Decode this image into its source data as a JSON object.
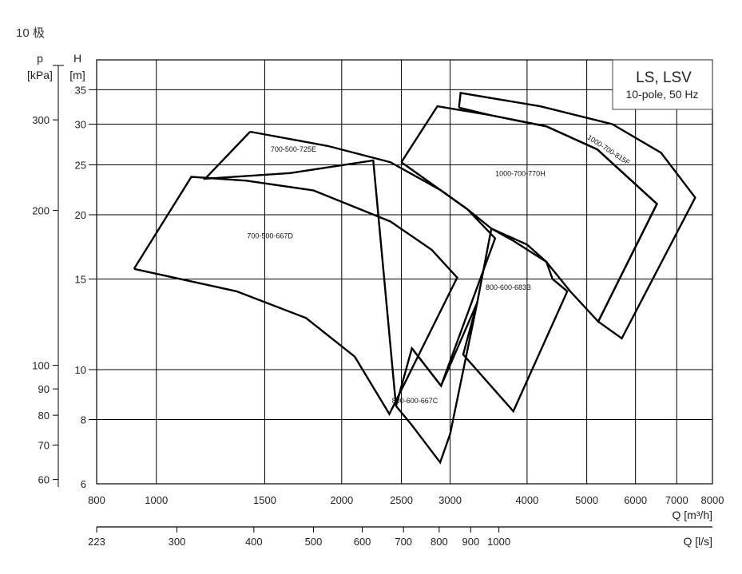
{
  "page": {
    "title": "10 极"
  },
  "legend": {
    "title": "LS, LSV",
    "subtitle": "10-pole, 50 Hz"
  },
  "chart_data": {
    "type": "line",
    "scale": "log-log",
    "grid": true,
    "legend_position": "top-right",
    "x_axis": {
      "label": "Q [m³/h]",
      "range": [
        800,
        8000
      ],
      "ticks": [
        800,
        1000,
        1500,
        2000,
        2500,
        3000,
        4000,
        5000,
        6000,
        7000,
        8000
      ]
    },
    "x2_axis": {
      "label": "Q [l/s]",
      "ticks": [
        223,
        300,
        400,
        500,
        600,
        700,
        800,
        900,
        1000
      ]
    },
    "y_axis": {
      "label_symbol": "H",
      "label_unit": "[m]",
      "range": [
        6,
        40
      ],
      "ticks": [
        6,
        8,
        10,
        15,
        20,
        25,
        30,
        35
      ]
    },
    "y2_axis": {
      "label_symbol": "p",
      "label_unit": "[kPa]",
      "ticks": [
        60,
        70,
        80,
        90,
        100,
        200,
        300
      ]
    },
    "series": [
      {
        "name": "700-500-725E",
        "outline": [
          [
            1420,
            29
          ],
          [
            1900,
            27.2
          ],
          [
            2400,
            25.3
          ],
          [
            2900,
            22.3
          ],
          [
            3200,
            20.5
          ],
          [
            3550,
            18
          ],
          [
            2900,
            9.3
          ],
          [
            2600,
            11
          ],
          [
            2450,
            8.5
          ],
          [
            2250,
            25.5
          ],
          [
            1650,
            24.1
          ],
          [
            1200,
            23.5
          ],
          [
            1420,
            29
          ]
        ],
        "label_at": [
          1670,
          26.5
        ]
      },
      {
        "name": "700-500-667D",
        "outline": [
          [
            920,
            15.7
          ],
          [
            1140,
            23.7
          ],
          [
            1400,
            23.3
          ],
          [
            1800,
            22.3
          ],
          [
            2400,
            19.4
          ],
          [
            2800,
            17.1
          ],
          [
            3080,
            15.1
          ],
          [
            2390,
            8.2
          ],
          [
            2100,
            10.6
          ],
          [
            1750,
            12.6
          ],
          [
            1350,
            14.2
          ],
          [
            920,
            15.7
          ]
        ],
        "label_at": [
          1530,
          18
        ]
      },
      {
        "name": "800-600-667C",
        "outline": [
          [
            2450,
            8.5
          ],
          [
            2600,
            7.8
          ],
          [
            2890,
            6.6
          ],
          [
            3000,
            7.5
          ],
          [
            3320,
            13.5
          ],
          [
            2900,
            9.3
          ],
          [
            2600,
            11
          ]
        ],
        "label_at": [
          2630,
          8.6
        ]
      },
      {
        "name": "800-600-683B",
        "outline": [
          [
            3500,
            18.8
          ],
          [
            4000,
            17.5
          ],
          [
            4300,
            16.2
          ],
          [
            4400,
            15
          ],
          [
            4650,
            14.2
          ],
          [
            3800,
            8.3
          ],
          [
            3150,
            10.7
          ],
          [
            3320,
            13.5
          ],
          [
            3500,
            18.8
          ]
        ],
        "label_at": [
          3730,
          14.3
        ]
      },
      {
        "name": "1000-700-770H",
        "outline": [
          [
            2500,
            25.3
          ],
          [
            2860,
            32.5
          ],
          [
            3500,
            31.2
          ],
          [
            4300,
            29.7
          ],
          [
            5200,
            26.8
          ],
          [
            6500,
            21
          ],
          [
            5220,
            12.4
          ],
          [
            4700,
            14.2
          ],
          [
            4300,
            16.2
          ],
          [
            3800,
            17.8
          ],
          [
            3500,
            18.8
          ],
          [
            3200,
            20.5
          ],
          [
            2500,
            25.3
          ]
        ],
        "label_at": [
          3900,
          23.8
        ]
      },
      {
        "name": "1000-700-815F",
        "outline": [
          [
            3100,
            32.3
          ],
          [
            3120,
            34.5
          ],
          [
            4200,
            32.5
          ],
          [
            5500,
            30
          ],
          [
            6600,
            26.4
          ],
          [
            7500,
            21.6
          ],
          [
            5700,
            11.5
          ],
          [
            5220,
            12.4
          ],
          [
            6500,
            21
          ],
          [
            5200,
            26.8
          ],
          [
            4300,
            29.7
          ],
          [
            3500,
            31.2
          ],
          [
            3100,
            32.3
          ]
        ],
        "label_at": [
          5400,
          26.5
        ]
      }
    ]
  }
}
